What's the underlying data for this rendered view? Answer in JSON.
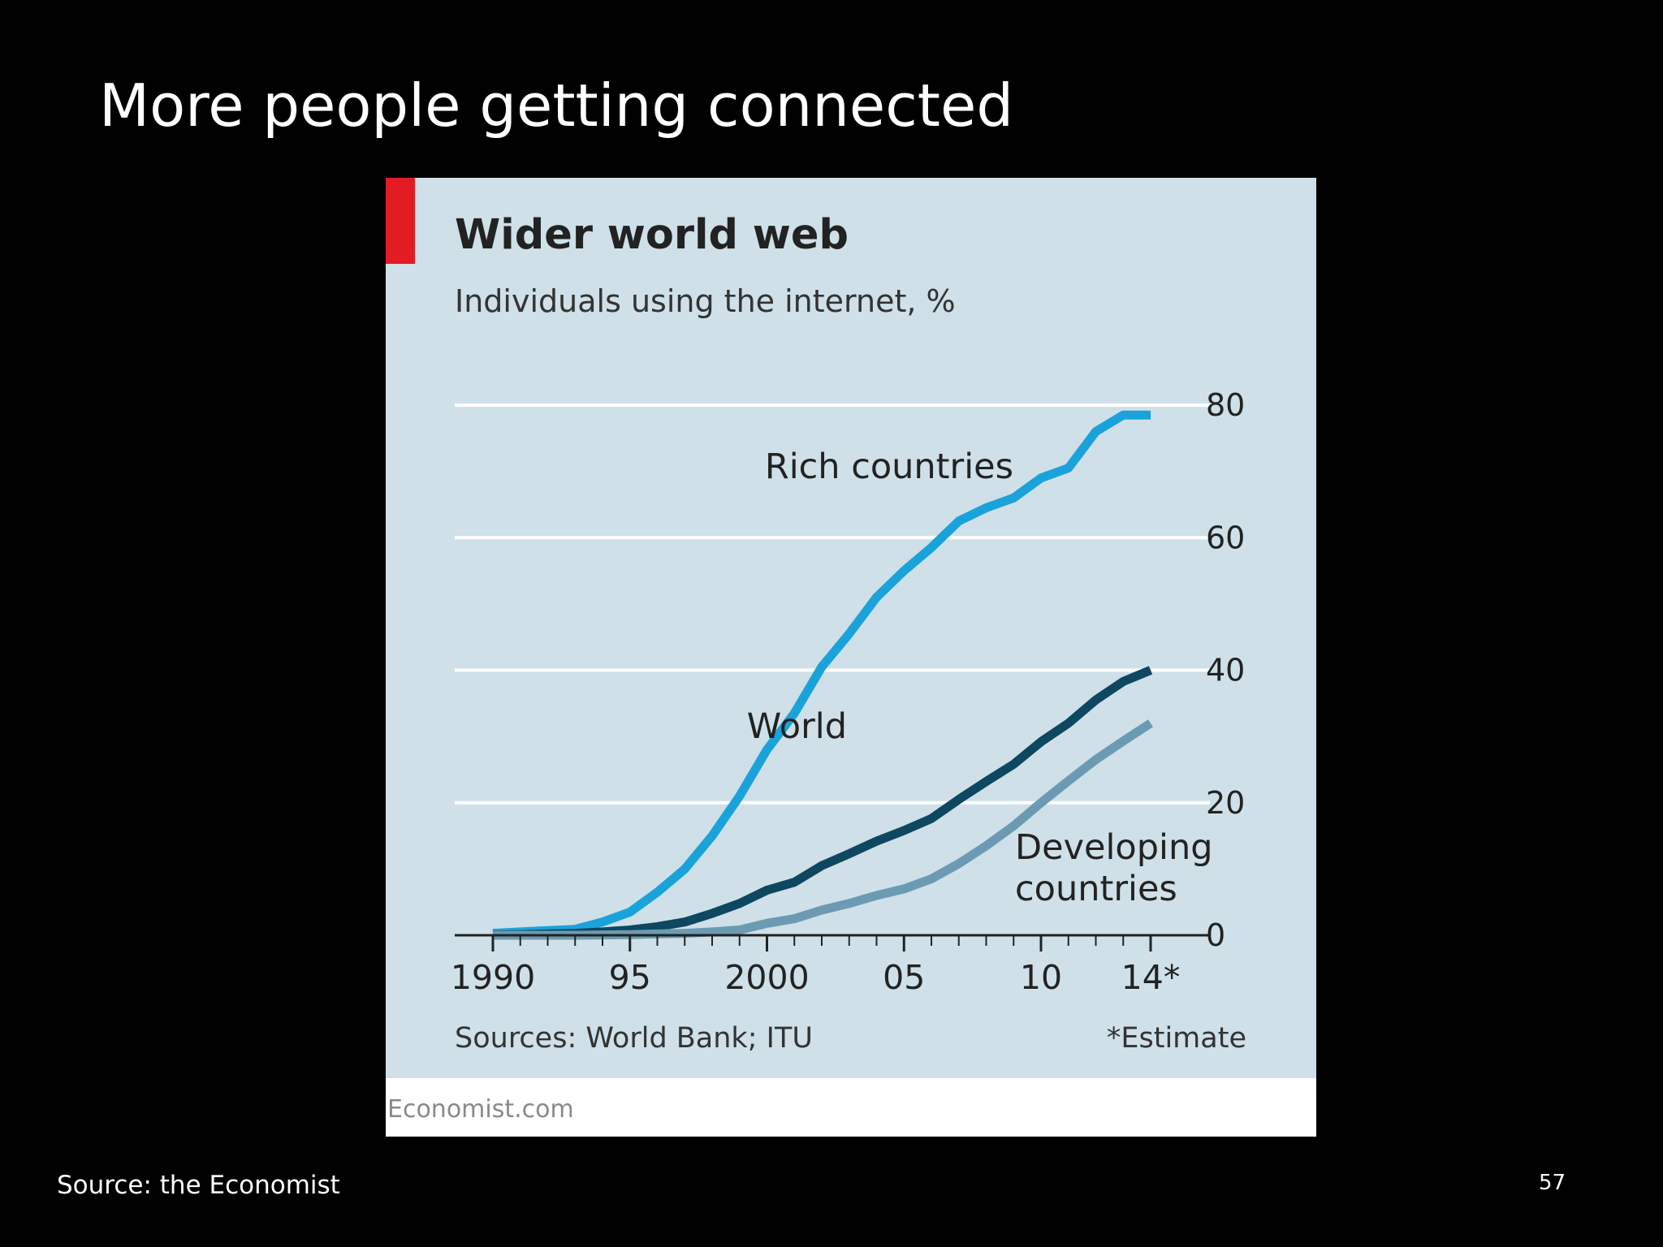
{
  "slide": {
    "title": "More people getting connected",
    "source": "Source: the Economist",
    "page_number": "57"
  },
  "chart_card": {
    "brand": "Economist.com",
    "accent_color": "#e31b23",
    "panel_color": "#cfe0e8"
  },
  "chart_data": {
    "type": "line",
    "title": "Wider world web",
    "subtitle": "Individuals using the internet, %",
    "xlabel": "",
    "ylabel": "",
    "xlim": [
      1990,
      2014
    ],
    "ylim": [
      0,
      80
    ],
    "x_ticks": [
      {
        "value": 1990,
        "label": "1990"
      },
      {
        "value": 1995,
        "label": "95"
      },
      {
        "value": 2000,
        "label": "2000"
      },
      {
        "value": 2005,
        "label": "05"
      },
      {
        "value": 2010,
        "label": "10"
      },
      {
        "value": 2014,
        "label": "14*"
      }
    ],
    "y_ticks": [
      0,
      20,
      40,
      60,
      80
    ],
    "y_axis_side": "right",
    "grid": true,
    "legend": "direct labels",
    "x": [
      1990,
      1991,
      1992,
      1993,
      1994,
      1995,
      1996,
      1997,
      1998,
      1999,
      2000,
      2001,
      2002,
      2003,
      2004,
      2005,
      2006,
      2007,
      2008,
      2009,
      2010,
      2011,
      2012,
      2013,
      2014
    ],
    "series": [
      {
        "name": "Rich countries",
        "color": "#1aa3db",
        "values": [
          0.3,
          0.5,
          0.7,
          0.9,
          2.0,
          3.5,
          6.5,
          10.0,
          15.0,
          21.0,
          28.0,
          33.5,
          40.5,
          45.5,
          51.0,
          55.0,
          58.5,
          62.5,
          64.5,
          66.0,
          69.0,
          70.5,
          76.0,
          78.5,
          78.5
        ]
      },
      {
        "name": "World",
        "color": "#0d4760",
        "values": [
          0.05,
          0.1,
          0.2,
          0.3,
          0.5,
          0.8,
          1.3,
          2.0,
          3.3,
          4.8,
          6.8,
          8.0,
          10.5,
          12.3,
          14.2,
          15.8,
          17.6,
          20.5,
          23.2,
          25.8,
          29.2,
          32.0,
          35.5,
          38.3,
          40.0
        ]
      },
      {
        "name": "Developing countries",
        "color": "#6b9bb2",
        "values": [
          0.0,
          0.0,
          0.0,
          0.0,
          0.05,
          0.1,
          0.2,
          0.3,
          0.5,
          0.8,
          1.8,
          2.5,
          3.8,
          4.8,
          6.0,
          7.0,
          8.5,
          10.8,
          13.5,
          16.5,
          20.0,
          23.3,
          26.5,
          29.3,
          32.0
        ]
      }
    ],
    "series_labels": [
      {
        "series": 0,
        "lines": [
          "Rich countries"
        ]
      },
      {
        "series": 1,
        "lines": [
          "World"
        ]
      },
      {
        "series": 2,
        "lines": [
          "Developing",
          "countries"
        ]
      }
    ],
    "sources": "Sources: World Bank; ITU",
    "footnote": "*Estimate"
  }
}
